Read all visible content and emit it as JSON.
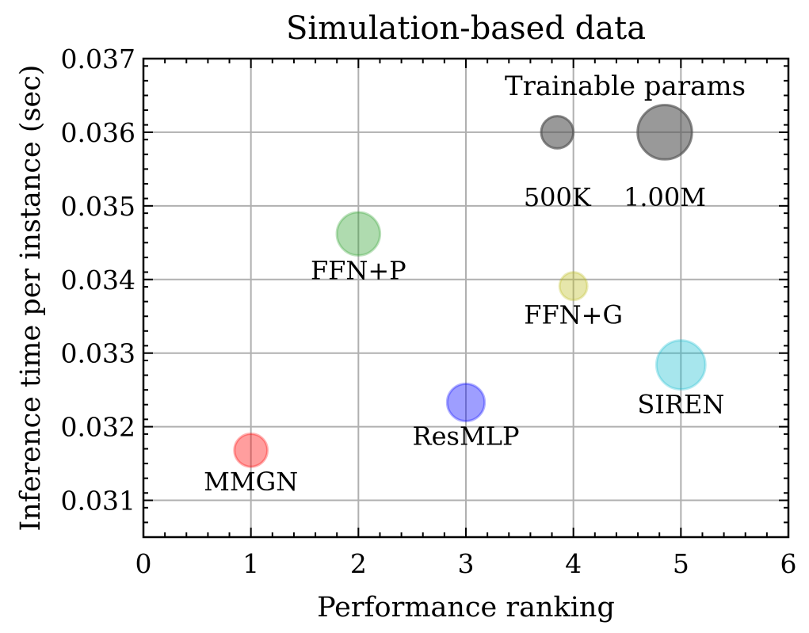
{
  "chart_data": {
    "type": "scatter",
    "title": "Simulation-based data",
    "xlabel": "Performance ranking",
    "ylabel": "Inference time per instance (sec)",
    "xlim": [
      0,
      6
    ],
    "ylim": [
      0.0305,
      0.037
    ],
    "xticks": [
      0,
      1,
      2,
      3,
      4,
      5,
      6
    ],
    "yticks": [
      0.031,
      0.032,
      0.033,
      0.034,
      0.035,
      0.036,
      0.037
    ],
    "ytick_labels": [
      "0.031",
      "0.032",
      "0.033",
      "0.034",
      "0.035",
      "0.036",
      "0.037"
    ],
    "grid": true,
    "size_encoding": "Trainable params",
    "points": [
      {
        "name": "MMGN",
        "x": 1,
        "y": 0.03168,
        "params": 520000,
        "color": "#ff0000"
      },
      {
        "name": "FFN+P",
        "x": 2,
        "y": 0.03462,
        "params": 750000,
        "color": "#2ca02c"
      },
      {
        "name": "ResMLP",
        "x": 3,
        "y": 0.03233,
        "params": 620000,
        "color": "#0000ff"
      },
      {
        "name": "FFN+G",
        "x": 4,
        "y": 0.03391,
        "params": 400000,
        "color": "#bcbd22"
      },
      {
        "name": "SIREN",
        "x": 5,
        "y": 0.03284,
        "params": 880000,
        "color": "#17becf"
      }
    ],
    "legend": {
      "title": "Trainable params",
      "placement": "top-right",
      "entries": [
        {
          "label": "500K",
          "params": 500000,
          "x": 3.85,
          "y": 0.036
        },
        {
          "label": "1.00M",
          "params": 1000000,
          "x": 4.85,
          "y": 0.036
        }
      ],
      "color": "#555555"
    }
  }
}
